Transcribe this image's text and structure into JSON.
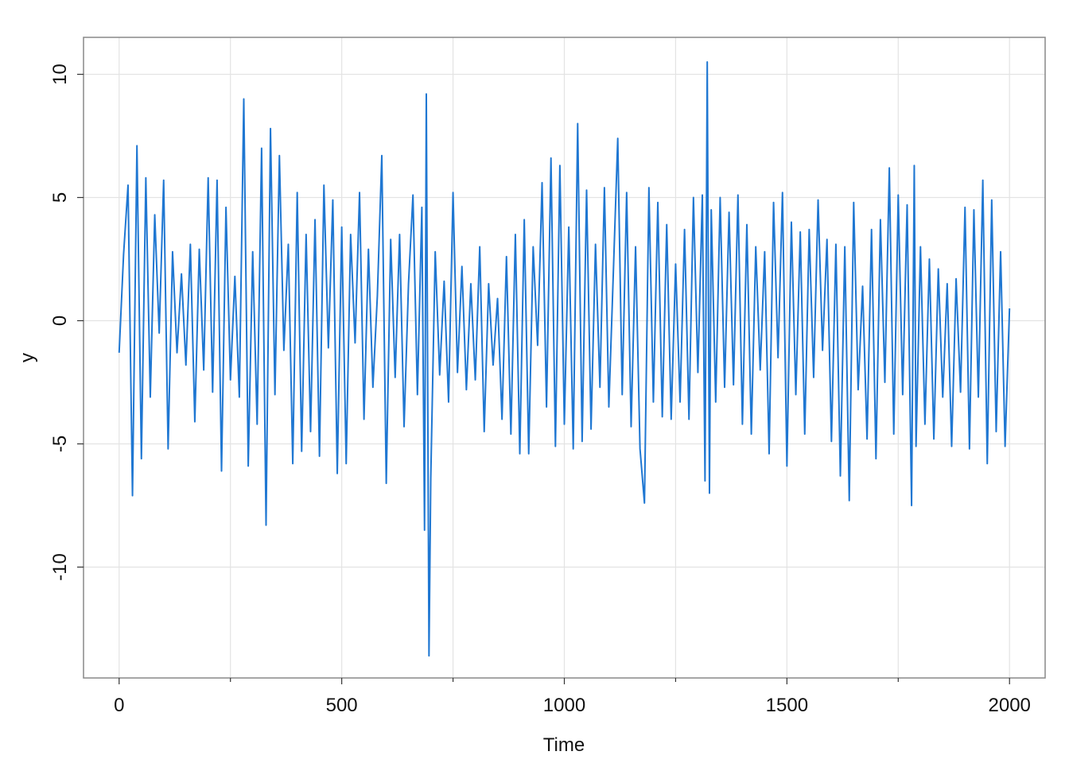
{
  "chart_data": {
    "type": "line",
    "x_label": "Time",
    "y_label": "y",
    "x": [
      0,
      10,
      20,
      30,
      40,
      50,
      60,
      70,
      80,
      90,
      100,
      110,
      120,
      130,
      140,
      150,
      160,
      170,
      180,
      190,
      200,
      210,
      220,
      230,
      240,
      250,
      260,
      270,
      280,
      290,
      300,
      310,
      320,
      330,
      340,
      350,
      360,
      370,
      380,
      390,
      400,
      410,
      420,
      430,
      440,
      450,
      460,
      470,
      480,
      490,
      500,
      510,
      520,
      530,
      540,
      550,
      560,
      570,
      580,
      590,
      600,
      610,
      620,
      630,
      640,
      650,
      660,
      670,
      680,
      686,
      690,
      696,
      700,
      710,
      720,
      730,
      740,
      750,
      760,
      770,
      780,
      790,
      800,
      810,
      820,
      830,
      840,
      850,
      860,
      870,
      880,
      890,
      900,
      910,
      920,
      930,
      940,
      950,
      960,
      970,
      980,
      990,
      1000,
      1010,
      1020,
      1030,
      1040,
      1050,
      1060,
      1070,
      1080,
      1090,
      1100,
      1110,
      1120,
      1130,
      1140,
      1150,
      1160,
      1170,
      1180,
      1190,
      1200,
      1210,
      1220,
      1230,
      1240,
      1250,
      1260,
      1270,
      1280,
      1290,
      1300,
      1310,
      1316,
      1321,
      1326,
      1330,
      1340,
      1350,
      1360,
      1370,
      1380,
      1390,
      1400,
      1410,
      1420,
      1430,
      1440,
      1450,
      1460,
      1470,
      1480,
      1490,
      1500,
      1510,
      1520,
      1530,
      1540,
      1550,
      1560,
      1570,
      1580,
      1590,
      1600,
      1610,
      1620,
      1630,
      1640,
      1650,
      1660,
      1670,
      1680,
      1690,
      1700,
      1710,
      1720,
      1730,
      1740,
      1750,
      1760,
      1770,
      1780,
      1786,
      1790,
      1800,
      1810,
      1820,
      1830,
      1840,
      1850,
      1860,
      1870,
      1880,
      1890,
      1900,
      1910,
      1920,
      1930,
      1940,
      1950,
      1960,
      1970,
      1980,
      1990,
      2000
    ],
    "series": [
      {
        "color": "#1f77d2",
        "values": [
          -1.3,
          2.7,
          5.5,
          -7.1,
          7.1,
          -5.6,
          5.8,
          -3.1,
          4.3,
          -0.5,
          5.7,
          -5.2,
          2.8,
          -1.3,
          1.9,
          -1.8,
          3.1,
          -4.1,
          2.9,
          -2.0,
          5.8,
          -2.9,
          5.7,
          -6.1,
          4.6,
          -2.4,
          1.8,
          -3.1,
          9.0,
          -5.9,
          2.8,
          -4.2,
          7.0,
          -8.3,
          7.8,
          -3.0,
          6.7,
          -1.2,
          3.1,
          -5.8,
          5.2,
          -5.3,
          3.5,
          -4.5,
          4.1,
          -5.5,
          5.5,
          -1.1,
          4.9,
          -6.2,
          3.8,
          -5.8,
          3.5,
          -0.9,
          5.2,
          -4.0,
          2.9,
          -2.7,
          1.0,
          6.7,
          -6.6,
          3.3,
          -2.3,
          3.5,
          -4.3,
          1.5,
          5.1,
          -3.0,
          4.6,
          -8.5,
          9.2,
          -13.6,
          -6.4,
          2.8,
          -2.2,
          1.6,
          -3.3,
          5.2,
          -2.1,
          2.2,
          -2.8,
          1.5,
          -2.4,
          3.0,
          -4.5,
          1.5,
          -1.8,
          0.9,
          -4.0,
          2.6,
          -4.6,
          3.5,
          -5.4,
          4.1,
          -5.4,
          3.0,
          -1.0,
          5.6,
          -3.5,
          6.6,
          -5.1,
          6.3,
          -4.2,
          3.8,
          -5.2,
          8.0,
          -4.9,
          5.3,
          -4.4,
          3.1,
          -2.7,
          5.4,
          -3.5,
          1.9,
          7.4,
          -3.0,
          5.2,
          -4.3,
          3.0,
          -5.2,
          -7.4,
          5.4,
          -3.3,
          4.8,
          -3.9,
          3.9,
          -4.0,
          2.3,
          -3.3,
          3.7,
          -4.0,
          5.0,
          -2.1,
          5.1,
          -6.5,
          10.5,
          -7.0,
          4.5,
          -3.3,
          5.0,
          -2.7,
          4.4,
          -2.6,
          5.1,
          -4.2,
          3.9,
          -4.6,
          3.0,
          -2.0,
          2.8,
          -5.4,
          4.8,
          -1.5,
          5.2,
          -5.9,
          4.0,
          -3.0,
          3.6,
          -4.6,
          3.7,
          -2.3,
          4.9,
          -1.2,
          3.3,
          -4.9,
          3.1,
          -6.3,
          3.0,
          -7.3,
          4.8,
          -2.8,
          1.4,
          -4.8,
          3.7,
          -5.6,
          4.1,
          -2.5,
          6.2,
          -4.6,
          5.1,
          -3.0,
          4.7,
          -7.5,
          6.3,
          -5.1,
          3.0,
          -4.2,
          2.5,
          -4.8,
          2.1,
          -3.1,
          1.5,
          -5.1,
          1.7,
          -2.9,
          4.6,
          -5.2,
          4.5,
          -3.1,
          5.7,
          -5.8,
          4.9,
          -4.5,
          2.8,
          -5.1,
          0.5
        ]
      }
    ],
    "xlim": [
      -80,
      2080
    ],
    "ylim": [
      -14.5,
      11.5
    ],
    "xticks": [
      0,
      500,
      1000,
      1500,
      2000
    ],
    "x_minor_ticks": [
      250,
      750,
      1250,
      1750
    ],
    "yticks": [
      -10,
      -5,
      0,
      5,
      10
    ],
    "grid": true
  }
}
